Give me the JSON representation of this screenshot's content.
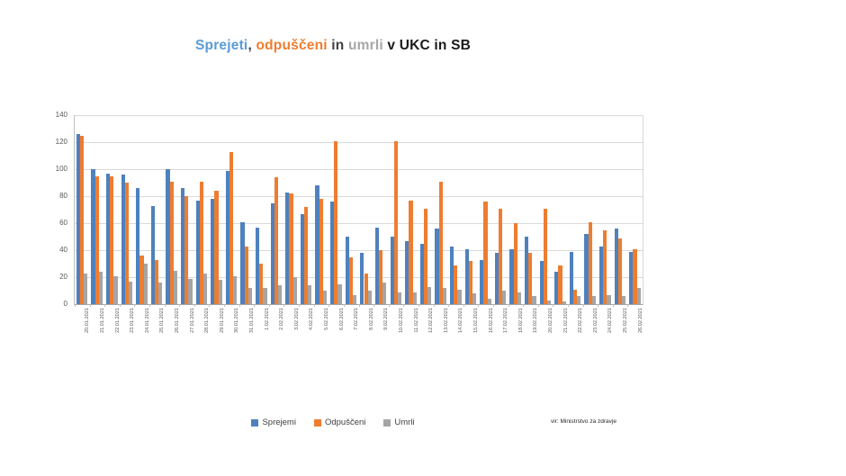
{
  "title": {
    "segments": [
      {
        "text": "Sprejeti",
        "color": "#5B9BD5"
      },
      {
        "text": ", ",
        "color": "#404040"
      },
      {
        "text": "odpuščeni",
        "color": "#ED7D31"
      },
      {
        "text": " in ",
        "color": "#404040"
      },
      {
        "text": "umrli",
        "color": "#A6A6A6"
      },
      {
        "text": " v UKC in SB",
        "color": "#1A1A1A"
      }
    ]
  },
  "legend": {
    "items": [
      {
        "label": "Sprejemi",
        "color": "#4E81BD"
      },
      {
        "label": "Odpuščeni",
        "color": "#ED7D31"
      },
      {
        "label": "Umrli",
        "color": "#A5A5A5"
      }
    ]
  },
  "chart_data": {
    "type": "bar",
    "title": "Sprejeti, odpuščeni in umrli v UKC in SB",
    "categories": [
      "20.01.2021",
      "21.01.2021",
      "22.01.2021",
      "23.01.2021",
      "24.01.2021",
      "25.01.2021",
      "26.01.2021",
      "27.01.2021",
      "28.01.2021",
      "29.01.2021",
      "30.01.2021",
      "31.01.2021",
      "1.02.2021",
      "2.02.2021",
      "3.02.2021",
      "4.02.2021",
      "5.02.2021",
      "6.02.2021",
      "7.02.2021",
      "8.02.2021",
      "9.02.2021",
      "10.02.2021",
      "11.02.2021",
      "12.02.2021",
      "13.02.2021",
      "14.02.2021",
      "15.02.2021",
      "16.02.2021",
      "17.02.2021",
      "18.02.2021",
      "19.02.2021",
      "20.02.2021",
      "21.02.2021",
      "22.02.2021",
      "23.02.2021",
      "24.02.2021",
      "25.02.2021",
      "26.02.2021"
    ],
    "series": [
      {
        "name": "Sprejemi",
        "color": "#4E81BD",
        "values": [
          126,
          100,
          97,
          96,
          86,
          73,
          100,
          86,
          77,
          78,
          99,
          61,
          57,
          75,
          83,
          67,
          88,
          76,
          50,
          38,
          57,
          50,
          47,
          45,
          56,
          43,
          41,
          33,
          38,
          41,
          50,
          32,
          24,
          39,
          52,
          43,
          56,
          39
        ]
      },
      {
        "name": "Odpuščeni",
        "color": "#ED7D31",
        "values": [
          125,
          95,
          95,
          90,
          36,
          33,
          91,
          80,
          91,
          84,
          113,
          43,
          30,
          94,
          82,
          72,
          78,
          121,
          35,
          23,
          40,
          121,
          77,
          71,
          91,
          29,
          32,
          76,
          71,
          60,
          38,
          71,
          29,
          11,
          61,
          55,
          49,
          41
        ]
      },
      {
        "name": "Umrli",
        "color": "#A5A5A5",
        "values": [
          23,
          24,
          21,
          17,
          30,
          16,
          25,
          19,
          23,
          18,
          21,
          12,
          12,
          14,
          20,
          14,
          10,
          15,
          7,
          10,
          16,
          9,
          9,
          13,
          12,
          11,
          8,
          4,
          10,
          9,
          6,
          3,
          2,
          6,
          6,
          7,
          6,
          12
        ]
      }
    ],
    "ylim": [
      0,
      140
    ],
    "ytick_step": 20,
    "grid": true,
    "legend_position": "bottom",
    "source": "vir: Ministrstvo za zdravje"
  }
}
